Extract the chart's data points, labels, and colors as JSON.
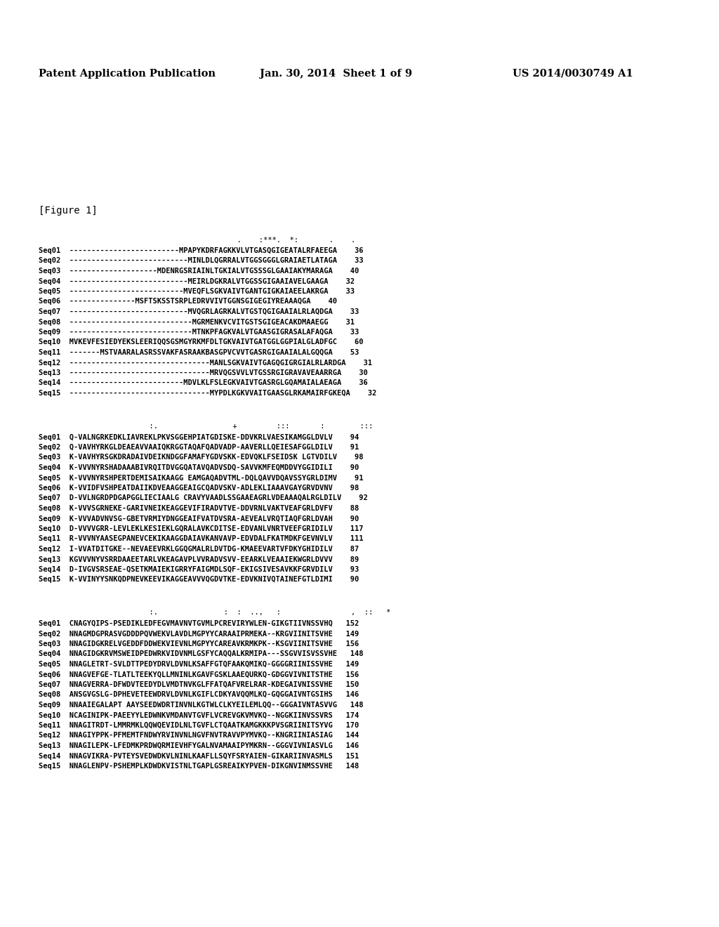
{
  "header_left": "Patent Application Publication",
  "header_center": "Jan. 30, 2014  Sheet 1 of 9",
  "header_right": "US 2014/0030749 A1",
  "figure_label": "[Figure 1]",
  "background_color": "#ffffff",
  "text_color": "#000000",
  "conservation_line1": "                              .    :***.  *:       .    .",
  "conservation_line2": "          :.                 +         :::       :        :::  ",
  "conservation_line3": "          :.               :  :  ..,   :                ,  ::   *",
  "block1": [
    "Seq01  -------------------------MPAPYKDRFAGKKVLVTGASQGIGEATALRFAEEGA    36",
    "Seq02  ---------------------------MINLDLQGRRALVTGGSGGGLGRAIAETLATAGA    33",
    "Seq03  --------------------MDENRGSRIAINLTGKIALVTGSSSGLGAAIAKYMARAGA    40",
    "Seq04  ---------------------------MEIRLDGKRALVTGGSSGIGAAIAVELGAAGA    32",
    "Seq05  --------------------------MVEQFLSGKVAIVTGANTGIGKAIAEELAKRGA    33",
    "Seq06  ---------------MSFTSKSSTSRPLEDRVVIVTGGNSGIGEGIYREAAAQGA    40",
    "Seq07  ---------------------------MVQGRLAGRKALVTGSTQGIGAAIALRLAQDGA    33",
    "Seq08  ----------------------------MGRMENKVCVITGSTSGIGEACAKDMAAEGG    31",
    "Seq09  ----------------------------MTNKPFAGKVALVTGAASGIGRASALAFAQGA    33",
    "Seq10  MVKEVFESIEDYEKSLEERIQQSGSMGYRKMFDLTGKVAIVTGATGGLGGPIALGLADFGC    60",
    "Seq11  -------MSTVAARALASRSSVAKFASRAAKBASGPVCVVTGASRGIGAAIALALGQQGA    53",
    "Seq12  --------------------------------MANLSGKVAIVTGAGQGIGRGIALRLARDGA    31",
    "Seq13  --------------------------------MRVQGSVVLVTGSSRGIGRAVAVEAARRGA    30",
    "Seq14  --------------------------MDVLKLFSLEGKVAIVTGASRGLGQAMAIALAEAGA    36",
    "Seq15  --------------------------------MYPDLKGKVVAITGAASGLRKAMAIRFGKEQA    32"
  ],
  "block2": [
    "Seq01  Q-VALNGRKEDKLIAVREKLPKVSGGEHPIATGDISKE-DDVKRLVAESIKAMGGLDVLV    94",
    "Seq02  Q-VAVHYRKGLDEAEAVVAAIQKRGGTAQAFQADVADP-AAVERLLQEIESAFGGLDILV    91",
    "Seq03  K-VAVHYRSGKDRADAIVDEIKNDGGFAMAFYGDVSKK-EDVQKLFSEIDSK LGTVDILV    98",
    "Seq04  K-VVVNYRSHADAAABIVRQITDVGGQATAVQADVSDQ-SAVVKMFEQMDDVYGGIDILI    90",
    "Seq05  K-VVVNYRSHPERTDEMISAIKAAGG EAMGAQADVTML-DQLQAVVDQAVSSYGRLDIMV    91",
    "Seq06  K-VVIDFVSHPEATDAIIKDVEAAGGEAIGCQADVSKV-ADLEKLIAAAVGAYGRVDVNV    98",
    "Seq07  D-VVLNGRDPDGAPGGLIECIAALG CRAVYVAADLSSGAAEAGRLVDEAAAQALRGLDILV    92",
    "Seq08  K-VVVSGRNEKE-GARIVNEIKEAGGEVIFIRADVTVE-DDVRNLVAKTVEAFGRLDVFV    88",
    "Seq09  K-VVVADVNVSG-GBETVRMIYDNGGEAIFVATDVSRA-AEVEALVRQTIAQFGRLDVAH    90",
    "Seq10  D-VVVVGRR-LEVLEKLKESIEKLGQRALAVKCDITSE-EDVANLVNRTVEEFGRIDILV    117",
    "Seq11  R-VVVNYAASEGPANEVCEKIKAAGGDAIAVKANVAVP-EDVDALFKATMDKFGEVNVLV    111",
    "Seq12  I-VVATDITGKE--NEVAEEVRKLGGQGMALRLDVTDG-KMAEEVARTVFDKYGHIDILV    87",
    "Seq13  KGVVVNYVSRRDAAEETARLVKEAGAVPLVVRADVSVV-EEARKLVEAAIEKWGRLDVVV    89",
    "Seq14  D-IVGVSRSEAE-QSETKMAIEKIGRRYFAIGMDLSQF-EKIGSIVESAVKKFGRVDILV    93",
    "Seq15  K-VVINYYSNKQDPNEVKEEVIKAGGEAVVVQGDVTKE-EDVKNIVQTAINEFGTLDIMI    90"
  ],
  "block3": [
    "Seq01  CNAGYQIPS-PSEDIKLEDFEGVMAVNVTGVMLPCREVIRYWLEN-GIKGTIIVNSSVHQ   152",
    "Seq02  NNAGMDGPRASVGDDDPQVWEKVLAVDLMGPYYCARAAIPRMEKA--KRGVIINITSVHE   149",
    "Seq03  NNAGIDGKRELVGEDDFDDWEKVIEVNLMGPYYCAREAVKRMKPK--KSGVIINITSVHE   156",
    "Seq04  NNAGIDGKRVMSWEIDPEDWRKVIDVNMLGSFYCAQQALKRMIPA---SSGVVISVSSVHE   148",
    "Seq05  NNAGLETRT-SVLDTTPEDYDRVLDVNLKSAFFGTQFAAKQMIKQ-GGGGRIINISSVHE   149",
    "Seq06  NNAGVEFGE-TLATLTEEKYQLLMNINLKGAVFGSKLAAEQURKQ-GDGGVIVNITSTHE   156",
    "Seq07  NNAGVERRA-DFWDVTEEDYDLVMDTNVKGLFFATQAFVRELRAR-KDEGAIVNISSVHE   150",
    "Seq08  ANSGVGSLG-DPHEVETEEWDRVLDVNLKGIFLCDKYAVQQMLKQ-GQGGAIVNTGSIHS   146",
    "Seq09  NNAAIEGALAPT AAYSEEDWDRTINVNLKGTWLCLKYEILEMLQQ--GGGAIVNTASVVG   148",
    "Seq10  NCAGINIPK-PAEEYYLEDWNKVMDANVTGVFLVCREVGKVMVKQ--NGGKIINVSSVRS   174",
    "Seq11  NNAGITRDT-LMMRMKLQQWQEVIDLNLTGVFLCTQAATKAMGKKKPVSGRIINITSYVG   170",
    "Seq12  NNAGIYPPK-PFMEMTFNDWYRVINVNLNGVFNVTRAVVPYMVKQ--KNGRIINIASIAG   144",
    "Seq13  NNAGILEPK-LFEDMKPRDWQRMIEVHFYGALNVAMAAIPYMKRN--GGGVIVNIASVLG   146",
    "Seq14  NNAGVIKRA-PVTEYSVEDWDKVLNINLKAAFLLSQYFSRYAIEN-GIKARIINVASMLS   151",
    "Seq15  NNAGLENPV-PSHEMPLKDWDKVISTNLTGAPLGSREAIKYPVEN-DIKGNVINMSSVHE   148"
  ]
}
